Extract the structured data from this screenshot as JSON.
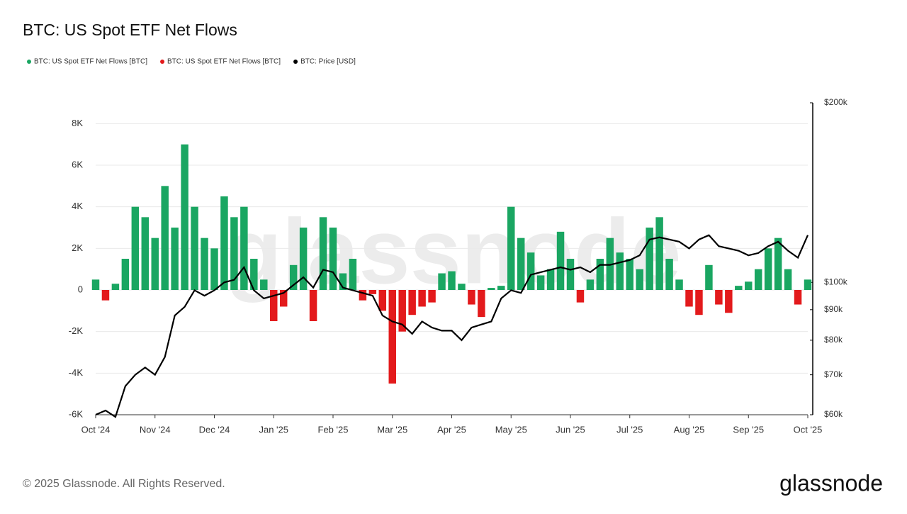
{
  "chart_data": {
    "type": "bar",
    "title": "BTC: US Spot ETF Net Flows",
    "watermark": "glassnode",
    "footer": "© 2025 Glassnode. All Rights Reserved.",
    "logo": "glassnode",
    "categories": [
      "Oct '24",
      null,
      null,
      null,
      null,
      null,
      "Nov '24",
      null,
      null,
      null,
      null,
      null,
      "Dec '24",
      null,
      null,
      null,
      null,
      null,
      "Jan '25",
      null,
      null,
      null,
      null,
      null,
      "Feb '25",
      null,
      null,
      null,
      null,
      null,
      "Mar '25",
      null,
      null,
      null,
      null,
      null,
      "Apr '25",
      null,
      null,
      null,
      null,
      null,
      "May '25",
      null,
      null,
      null,
      null,
      null,
      "Jun '25",
      null,
      null,
      null,
      null,
      null,
      "Jul '25",
      null,
      null,
      null,
      null,
      null,
      "Aug '25",
      null,
      null,
      null,
      null,
      null,
      "Sep '25",
      null,
      null,
      null,
      null,
      null,
      "Oct '25"
    ],
    "series": [
      {
        "name": "BTC: US Spot ETF Net Flows [BTC]",
        "color": "#1aa662",
        "values": [
          500,
          null,
          300,
          1500,
          4000,
          3500,
          2500,
          5000,
          3000,
          7000,
          4000,
          2500,
          2000,
          4500,
          3500,
          4000,
          1500,
          500,
          null,
          null,
          1200,
          3000,
          null,
          3500,
          3000,
          800,
          1500,
          null,
          null,
          null,
          null,
          null,
          null,
          null,
          null,
          800,
          900,
          300,
          null,
          null,
          100,
          200,
          4000,
          2500,
          1800,
          700,
          1000,
          2800,
          1500,
          null,
          500,
          1500,
          2500,
          1800,
          1500,
          1000,
          3000,
          3500,
          1500,
          500,
          null,
          null,
          1200,
          null,
          null,
          200,
          400,
          1000,
          2000,
          2500,
          1000,
          null,
          500
        ]
      },
      {
        "name": "BTC: US Spot ETF Net Flows [BTC]",
        "color": "#e31a1c",
        "values": [
          null,
          -500,
          null,
          null,
          null,
          null,
          null,
          null,
          null,
          null,
          null,
          null,
          null,
          null,
          null,
          null,
          null,
          null,
          -1500,
          -800,
          null,
          null,
          -1500,
          null,
          null,
          null,
          null,
          -500,
          -200,
          -1000,
          -4500,
          -2000,
          -1200,
          -800,
          -600,
          null,
          null,
          null,
          -700,
          -1300,
          null,
          null,
          null,
          null,
          null,
          null,
          null,
          null,
          null,
          -600,
          null,
          null,
          null,
          null,
          null,
          null,
          null,
          null,
          null,
          null,
          -800,
          -1200,
          null,
          -700,
          -1100,
          null,
          null,
          null,
          null,
          null,
          null,
          -700,
          null
        ]
      },
      {
        "name": "BTC: Price [USD]",
        "color": "#000000",
        "type": "line",
        "axis": "y2",
        "values": [
          60000,
          61000,
          59500,
          67000,
          70000,
          72000,
          70000,
          75000,
          88000,
          91000,
          97000,
          95000,
          97000,
          100000,
          101000,
          106000,
          97000,
          94000,
          95000,
          96000,
          99000,
          102000,
          98000,
          105000,
          104000,
          98000,
          97000,
          96000,
          95000,
          88000,
          86000,
          85000,
          82000,
          86000,
          84000,
          83000,
          83000,
          80000,
          84000,
          85000,
          86000,
          94000,
          97000,
          96000,
          103000,
          104000,
          105000,
          106000,
          105000,
          106000,
          104000,
          107000,
          107000,
          108000,
          109000,
          111000,
          118000,
          119000,
          118000,
          117000,
          114000,
          118000,
          120000,
          115000,
          114000,
          113000,
          111000,
          112000,
          115000,
          117000,
          113000,
          110000,
          120000
        ]
      }
    ],
    "ylim": [
      -6000,
      9000
    ],
    "yticks": [
      {
        "value": -6000,
        "label": "-6K"
      },
      {
        "value": -4000,
        "label": "-4K"
      },
      {
        "value": -2000,
        "label": "-2K"
      },
      0,
      {
        "value": 2000,
        "label": "2K"
      },
      {
        "value": 4000,
        "label": "4K"
      },
      {
        "value": 6000,
        "label": "6K"
      },
      {
        "value": 8000,
        "label": "8K"
      }
    ],
    "y2lim": [
      60000,
      200000
    ],
    "y2scale": "log",
    "y2ticks": [
      {
        "value": 60000,
        "label": "$60k"
      },
      {
        "value": 70000,
        "label": "$70k"
      },
      {
        "value": 80000,
        "label": "$80k"
      },
      {
        "value": 90000,
        "label": "$90k"
      },
      {
        "value": 100000,
        "label": "$100k"
      },
      {
        "value": 200000,
        "label": "$200k"
      }
    ],
    "grid": true,
    "legend": "top-left"
  }
}
